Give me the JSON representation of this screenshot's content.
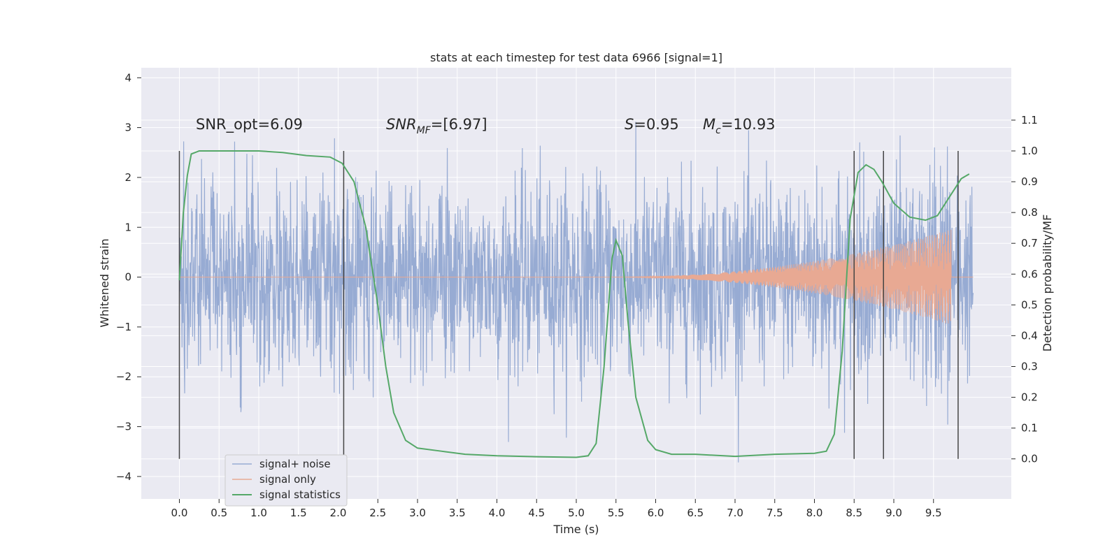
{
  "chart_data": {
    "type": "line",
    "title": "stats at each timestep for test data 6966 [signal=1]",
    "xlabel": "Time (s)",
    "ylabel": "Whitened strain",
    "y2label": "Detection probability/MF",
    "xlim": [
      -0.48,
      10.48
    ],
    "ylim": [
      -4.45,
      4.2
    ],
    "y2lim": [
      -0.13,
      1.27
    ],
    "xticks": [
      "0.0",
      "0.5",
      "1.0",
      "1.5",
      "2.0",
      "2.5",
      "3.0",
      "3.5",
      "4.0",
      "4.5",
      "5.0",
      "5.5",
      "6.0",
      "6.5",
      "7.0",
      "7.5",
      "8.0",
      "8.5",
      "9.0",
      "9.5"
    ],
    "yticks": [
      "4",
      "3",
      "2",
      "1",
      "0",
      "−1",
      "−2",
      "−3",
      "−4"
    ],
    "y2ticks": [
      "1.1",
      "1.0",
      "0.9",
      "0.8",
      "0.7",
      "0.6",
      "0.5",
      "0.4",
      "0.3",
      "0.2",
      "0.1",
      "0.0"
    ],
    "grid": true,
    "legend_position": "lower-left",
    "legend": [
      "signal+ noise",
      "signal only",
      "signal statistics"
    ],
    "colors": {
      "plot_bg": "#eaeaf2",
      "grid": "#ffffff",
      "noise": "#97abd3",
      "signal": "#e8a993",
      "stats": "#55a868",
      "vlines": "#444444"
    },
    "annotations": {
      "snr_opt": "SNR_opt=6.09",
      "snr_mf_sym": "SNR",
      "snr_mf_sub": "MF",
      "snr_mf_value": "=[6.97]",
      "s_sym": "S",
      "s_value": "=0.95",
      "mc_sym": "M",
      "mc_sub": "c",
      "mc_value": "=10.93"
    },
    "vertical_lines_x": [
      0.0,
      2.07,
      8.5,
      8.87,
      9.81
    ],
    "signal_only": {
      "start": 5.3,
      "peak_time": 9.7,
      "end": 9.72,
      "peak_amplitude": 0.95
    },
    "series": [
      {
        "name": "signal statistics",
        "axis": "right",
        "points": [
          [
            0.0,
            0.58
          ],
          [
            0.05,
            0.8
          ],
          [
            0.1,
            0.92
          ],
          [
            0.15,
            0.99
          ],
          [
            0.25,
            1.0
          ],
          [
            0.5,
            1.0
          ],
          [
            1.0,
            1.0
          ],
          [
            1.3,
            0.995
          ],
          [
            1.6,
            0.985
          ],
          [
            1.9,
            0.98
          ],
          [
            2.05,
            0.96
          ],
          [
            2.2,
            0.9
          ],
          [
            2.35,
            0.75
          ],
          [
            2.5,
            0.5
          ],
          [
            2.6,
            0.3
          ],
          [
            2.7,
            0.15
          ],
          [
            2.85,
            0.06
          ],
          [
            3.0,
            0.035
          ],
          [
            3.3,
            0.025
          ],
          [
            3.6,
            0.015
          ],
          [
            4.0,
            0.01
          ],
          [
            4.5,
            0.007
          ],
          [
            5.0,
            0.005
          ],
          [
            5.15,
            0.01
          ],
          [
            5.25,
            0.05
          ],
          [
            5.35,
            0.3
          ],
          [
            5.45,
            0.65
          ],
          [
            5.5,
            0.71
          ],
          [
            5.58,
            0.66
          ],
          [
            5.65,
            0.45
          ],
          [
            5.75,
            0.2
          ],
          [
            5.9,
            0.06
          ],
          [
            6.0,
            0.03
          ],
          [
            6.2,
            0.015
          ],
          [
            6.5,
            0.015
          ],
          [
            7.0,
            0.008
          ],
          [
            7.5,
            0.015
          ],
          [
            8.0,
            0.018
          ],
          [
            8.15,
            0.025
          ],
          [
            8.25,
            0.08
          ],
          [
            8.35,
            0.35
          ],
          [
            8.45,
            0.78
          ],
          [
            8.55,
            0.93
          ],
          [
            8.65,
            0.955
          ],
          [
            8.75,
            0.94
          ],
          [
            8.85,
            0.9
          ],
          [
            9.0,
            0.83
          ],
          [
            9.2,
            0.785
          ],
          [
            9.4,
            0.775
          ],
          [
            9.55,
            0.79
          ],
          [
            9.7,
            0.85
          ],
          [
            9.85,
            0.91
          ],
          [
            9.95,
            0.925
          ]
        ]
      }
    ]
  }
}
